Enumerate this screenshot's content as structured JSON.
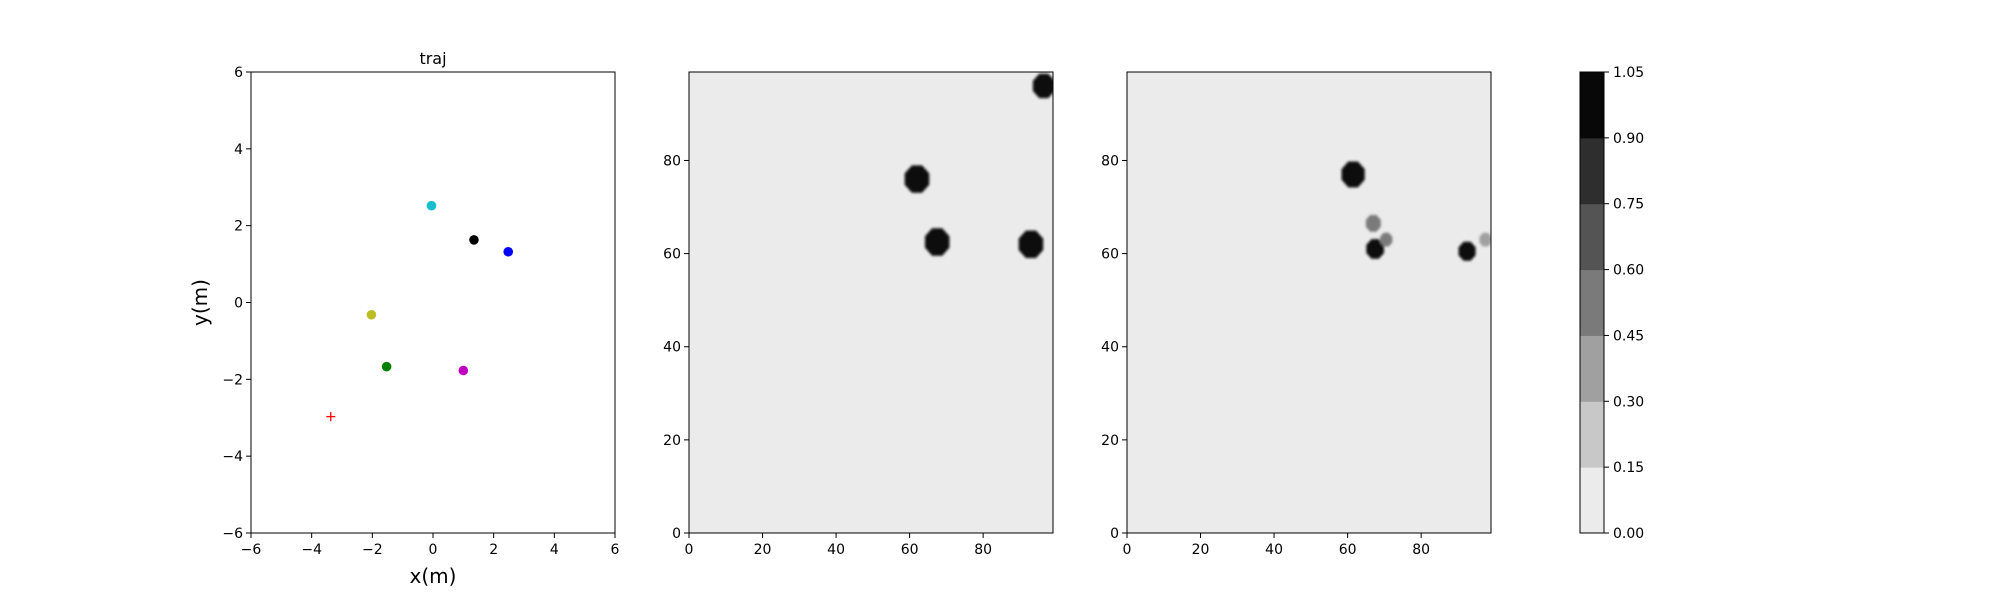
{
  "chart_data": [
    {
      "type": "scatter",
      "title": "traj",
      "xlabel": "x(m)",
      "ylabel": "y(m)",
      "xlim": [
        -6,
        6
      ],
      "ylim": [
        -6,
        6
      ],
      "xticks": [
        -6,
        -4,
        -2,
        0,
        2,
        4,
        6
      ],
      "yticks": [
        -6,
        -4,
        -2,
        0,
        2,
        4,
        6
      ],
      "grid": false,
      "points": [
        {
          "x": -0.05,
          "y": 2.52,
          "color": "#17becf",
          "marker": "circle"
        },
        {
          "x": 1.35,
          "y": 1.63,
          "color": "#000000",
          "marker": "circle"
        },
        {
          "x": 2.48,
          "y": 1.32,
          "color": "#0000ff",
          "marker": "circle"
        },
        {
          "x": -2.03,
          "y": -0.32,
          "color": "#bcbd22",
          "marker": "circle"
        },
        {
          "x": -1.53,
          "y": -1.67,
          "color": "#008000",
          "marker": "circle"
        },
        {
          "x": 1.0,
          "y": -1.77,
          "color": "#bf00bf",
          "marker": "circle"
        },
        {
          "x": -3.37,
          "y": -2.97,
          "color": "#ff0000",
          "marker": "plus"
        }
      ]
    },
    {
      "type": "heatmap",
      "xlim": [
        0,
        99
      ],
      "ylim": [
        0,
        99
      ],
      "xticks": [
        0,
        20,
        40,
        60,
        80
      ],
      "yticks": [
        0,
        20,
        40,
        60,
        80
      ],
      "background_level": 0.05,
      "blobs": [
        {
          "x": 62,
          "y": 76,
          "r": 3.6,
          "level": 1.0
        },
        {
          "x": 67.5,
          "y": 62.5,
          "r": 3.6,
          "level": 1.0
        },
        {
          "x": 93,
          "y": 62,
          "r": 3.6,
          "level": 1.0
        },
        {
          "x": 96.5,
          "y": 96,
          "r": 3.2,
          "level": 1.0
        }
      ]
    },
    {
      "type": "heatmap",
      "xlim": [
        0,
        99
      ],
      "ylim": [
        0,
        99
      ],
      "xticks": [
        0,
        20,
        40,
        60,
        80
      ],
      "yticks": [
        0,
        20,
        40,
        60,
        80
      ],
      "background_level": 0.05,
      "blobs": [
        {
          "x": 61.5,
          "y": 77,
          "r": 3.4,
          "level": 1.0
        },
        {
          "x": 67.5,
          "y": 61,
          "r": 2.6,
          "level": 1.0
        },
        {
          "x": 67,
          "y": 66.5,
          "r": 2.2,
          "level": 0.5
        },
        {
          "x": 70.5,
          "y": 63,
          "r": 1.8,
          "level": 0.5
        },
        {
          "x": 92.5,
          "y": 60.5,
          "r": 2.5,
          "level": 1.0
        },
        {
          "x": 97.5,
          "y": 63,
          "r": 1.8,
          "level": 0.35
        }
      ]
    },
    {
      "type": "colorbar",
      "levels": [
        "0.00",
        "0.15",
        "0.30",
        "0.45",
        "0.60",
        "0.75",
        "0.90",
        "1.05"
      ],
      "colors": [
        "#ebebeb",
        "#c8c8c8",
        "#a0a0a0",
        "#7a7a7a",
        "#545454",
        "#2e2e2e",
        "#080808"
      ]
    }
  ]
}
